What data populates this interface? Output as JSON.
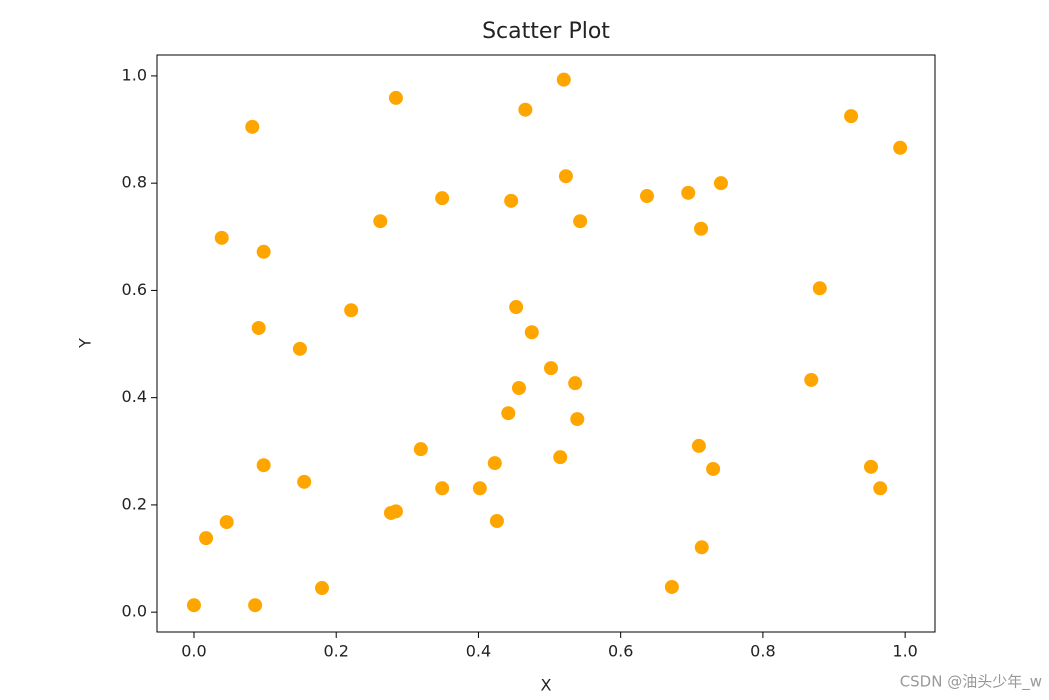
{
  "chart_data": {
    "type": "scatter",
    "title": "Scatter Plot",
    "x_label": "X",
    "y_label": "Y",
    "x": [
      0.0,
      0.017,
      0.046,
      0.039,
      0.082,
      0.086,
      0.091,
      0.098,
      0.098,
      0.149,
      0.155,
      0.18,
      0.221,
      0.262,
      0.277,
      0.284,
      0.284,
      0.319,
      0.349,
      0.349,
      0.402,
      0.423,
      0.426,
      0.442,
      0.446,
      0.453,
      0.457,
      0.466,
      0.475,
      0.502,
      0.515,
      0.52,
      0.523,
      0.536,
      0.539,
      0.543,
      0.637,
      0.672,
      0.695,
      0.71,
      0.713,
      0.714,
      0.73,
      0.741,
      0.868,
      0.88,
      0.924,
      0.952,
      0.965,
      0.993
    ],
    "values": [
      0.013,
      0.138,
      0.168,
      0.698,
      0.905,
      0.013,
      0.53,
      0.672,
      0.274,
      0.491,
      0.243,
      0.045,
      0.563,
      0.729,
      0.185,
      0.188,
      0.959,
      0.304,
      0.772,
      0.231,
      0.231,
      0.278,
      0.17,
      0.371,
      0.767,
      0.569,
      0.418,
      0.937,
      0.522,
      0.455,
      0.289,
      0.993,
      0.813,
      0.427,
      0.36,
      0.729,
      0.776,
      0.047,
      0.782,
      0.31,
      0.715,
      0.121,
      0.267,
      0.8,
      0.433,
      0.604,
      0.925,
      0.271,
      0.231,
      0.866
    ],
    "color": "#ffa500",
    "xlim": [
      -0.052,
      1.042
    ],
    "ylim": [
      -0.037,
      1.039
    ],
    "xticks": [
      {
        "value": 0,
        "label": "0.0"
      },
      0.2,
      0.4,
      0.6,
      0.8,
      {
        "value": 1,
        "label": "1.0"
      }
    ],
    "yticks": [
      {
        "value": 0,
        "label": "0.0"
      },
      0.2,
      0.4,
      0.6,
      0.8,
      {
        "value": 1,
        "label": "1.0"
      }
    ],
    "watermark": "CSDN @油头少年_w"
  }
}
